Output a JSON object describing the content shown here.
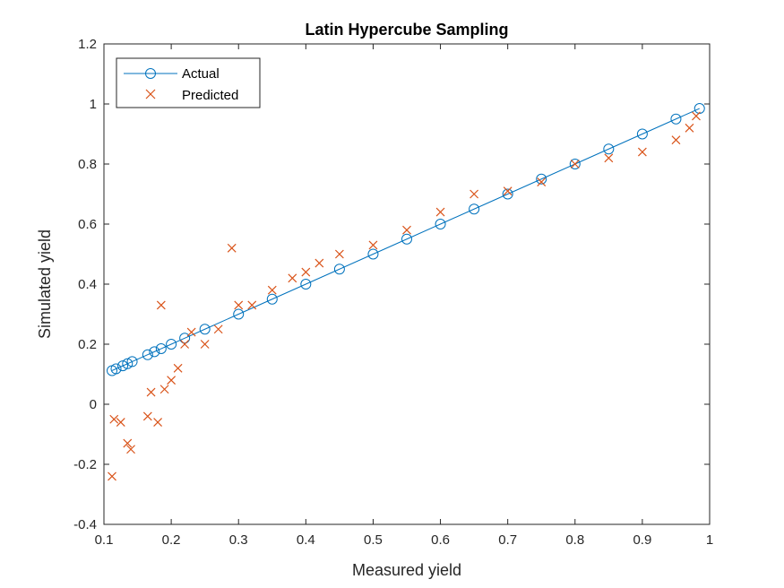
{
  "chart_data": {
    "type": "scatter",
    "title": "Latin Hypercube Sampling",
    "xlabel": "Measured yield",
    "ylabel": "Simulated yield",
    "xlim": [
      0.1,
      1
    ],
    "ylim": [
      -0.4,
      1.2
    ],
    "xticks": [
      "0.1",
      "0.2",
      "0.3",
      "0.4",
      "0.5",
      "0.6",
      "0.7",
      "0.8",
      "0.9",
      "1"
    ],
    "yticks": [
      "-0.4",
      "-0.2",
      "0",
      "0.2",
      "0.4",
      "0.6",
      "0.8",
      "1",
      "1.2"
    ],
    "grid": false,
    "legend_position": "top-left",
    "series": [
      {
        "name": "Actual",
        "marker": "circle-line",
        "color": "#0072BD",
        "x": [
          0.112,
          0.118,
          0.128,
          0.135,
          0.142,
          0.165,
          0.175,
          0.185,
          0.2,
          0.22,
          0.25,
          0.3,
          0.35,
          0.4,
          0.45,
          0.5,
          0.55,
          0.6,
          0.65,
          0.7,
          0.75,
          0.8,
          0.85,
          0.9,
          0.95,
          0.985
        ],
        "y": [
          0.112,
          0.118,
          0.128,
          0.135,
          0.142,
          0.165,
          0.175,
          0.185,
          0.2,
          0.22,
          0.25,
          0.3,
          0.35,
          0.4,
          0.45,
          0.5,
          0.55,
          0.6,
          0.65,
          0.7,
          0.75,
          0.8,
          0.85,
          0.9,
          0.95,
          0.985
        ]
      },
      {
        "name": "Predicted",
        "marker": "x",
        "color": "#D95319",
        "x": [
          0.112,
          0.115,
          0.125,
          0.135,
          0.14,
          0.165,
          0.17,
          0.18,
          0.185,
          0.19,
          0.2,
          0.21,
          0.22,
          0.23,
          0.25,
          0.27,
          0.29,
          0.3,
          0.32,
          0.35,
          0.38,
          0.4,
          0.42,
          0.45,
          0.5,
          0.55,
          0.6,
          0.65,
          0.7,
          0.75,
          0.8,
          0.85,
          0.9,
          0.95,
          0.97,
          0.98
        ],
        "y": [
          -0.24,
          -0.05,
          -0.06,
          -0.13,
          -0.15,
          -0.04,
          0.04,
          -0.06,
          0.33,
          0.05,
          0.08,
          0.12,
          0.2,
          0.24,
          0.2,
          0.25,
          0.52,
          0.33,
          0.33,
          0.38,
          0.42,
          0.44,
          0.47,
          0.5,
          0.53,
          0.58,
          0.64,
          0.7,
          0.71,
          0.74,
          0.8,
          0.82,
          0.84,
          0.88,
          0.92,
          0.96
        ]
      }
    ]
  }
}
